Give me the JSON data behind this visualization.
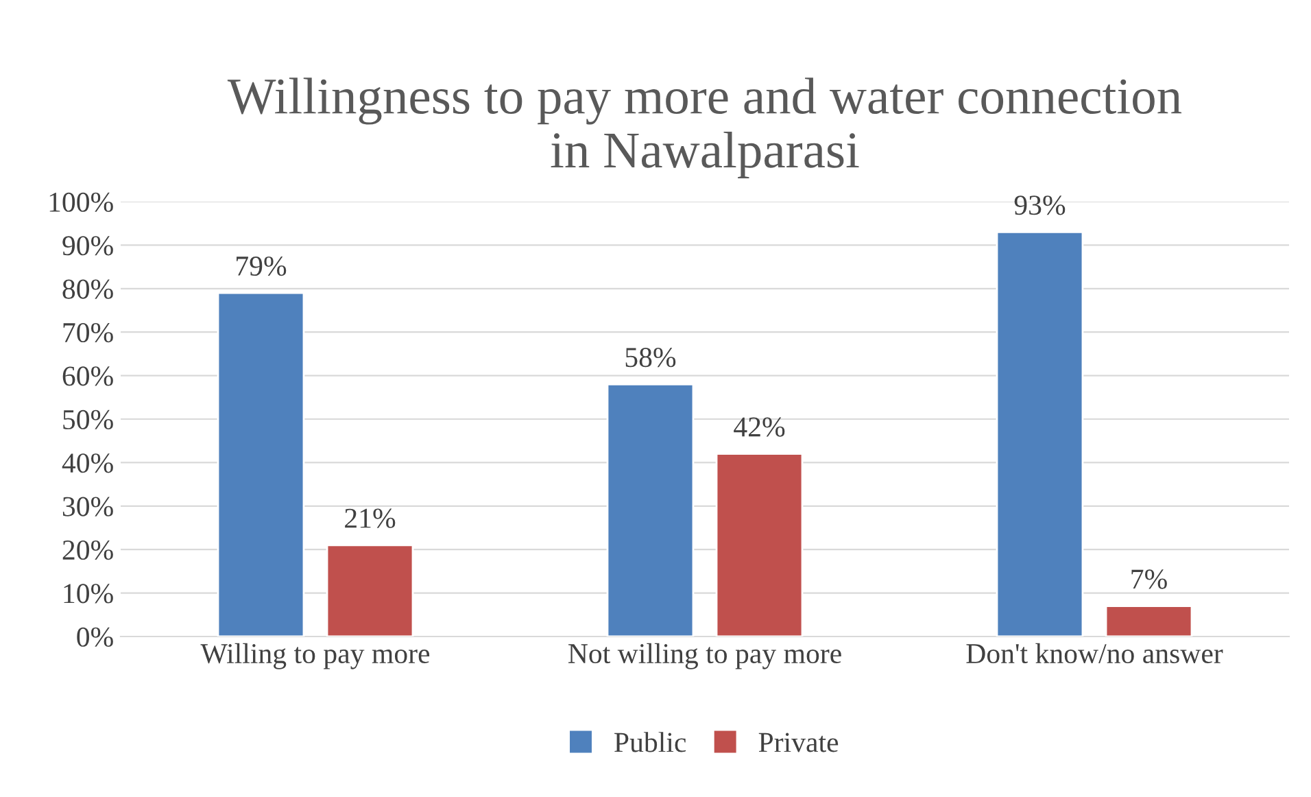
{
  "chart_data": {
    "type": "bar",
    "title": "Willingness to pay more and water connection\nin Nawalparasi",
    "categories": [
      "Willing to pay more",
      "Not willing to pay more",
      "Don't know/no answer"
    ],
    "series": [
      {
        "name": "Public",
        "color": "#4f81bd",
        "values": [
          79,
          58,
          93
        ]
      },
      {
        "name": "Private",
        "color": "#c0504d",
        "values": [
          21,
          42,
          7
        ]
      }
    ],
    "ylim": [
      0,
      100
    ],
    "yticks": [
      {
        "value": 0,
        "label": "0%"
      },
      {
        "value": 10,
        "label": "10%"
      },
      {
        "value": 20,
        "label": "20%"
      },
      {
        "value": 30,
        "label": "30%"
      },
      {
        "value": 40,
        "label": "40%"
      },
      {
        "value": 50,
        "label": "50%"
      },
      {
        "value": 60,
        "label": "60%"
      },
      {
        "value": 70,
        "label": "70%"
      },
      {
        "value": 80,
        "label": "80%"
      },
      {
        "value": 90,
        "label": "90%"
      },
      {
        "value": 100,
        "label": "100%"
      }
    ],
    "value_labels": [
      [
        "79%",
        "58%",
        "93%"
      ],
      [
        "21%",
        "42%",
        "7%"
      ]
    ],
    "grid": "y",
    "legend": "bottom"
  }
}
